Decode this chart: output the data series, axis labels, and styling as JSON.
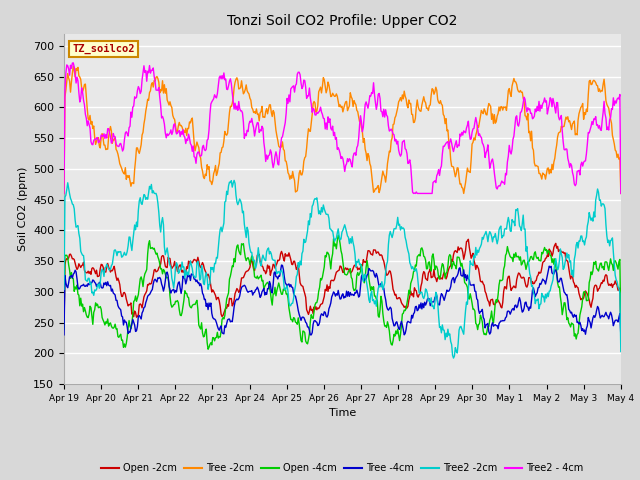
{
  "title": "Tonzi Soil CO2 Profile: Upper CO2",
  "xlabel": "Time",
  "ylabel": "Soil CO2 (ppm)",
  "ylim": [
    150,
    720
  ],
  "yticks": [
    150,
    200,
    250,
    300,
    350,
    400,
    450,
    500,
    550,
    600,
    650,
    700
  ],
  "background_color": "#d8d8d8",
  "plot_bg_color": "#e8e8e8",
  "grid_color": "white",
  "legend_label": "TZ_soilco2",
  "legend_bg": "#ffffcc",
  "legend_border": "#cc0000",
  "series": [
    {
      "name": "Open -2cm",
      "color": "#cc0000",
      "lw": 1.0
    },
    {
      "name": "Tree -2cm",
      "color": "#ff8800",
      "lw": 1.0
    },
    {
      "name": "Open -4cm",
      "color": "#00cc00",
      "lw": 1.0
    },
    {
      "name": "Tree -4cm",
      "color": "#0000cc",
      "lw": 1.0
    },
    {
      "name": "Tree2 -2cm",
      "color": "#00cccc",
      "lw": 1.0
    },
    {
      "name": "Tree2 - 4cm",
      "color": "#ff00ff",
      "lw": 1.0
    }
  ],
  "x_tick_labels": [
    "Apr 19",
    "Apr 20",
    "Apr 21",
    "Apr 22",
    "Apr 23",
    "Apr 24",
    "Apr 25",
    "Apr 26",
    "Apr 27",
    "Apr 28",
    "Apr 29",
    "Apr 30",
    "May 1",
    "May 2",
    "May 3",
    "May 4"
  ],
  "n_points": 600,
  "date_start": 0,
  "date_end": 15
}
